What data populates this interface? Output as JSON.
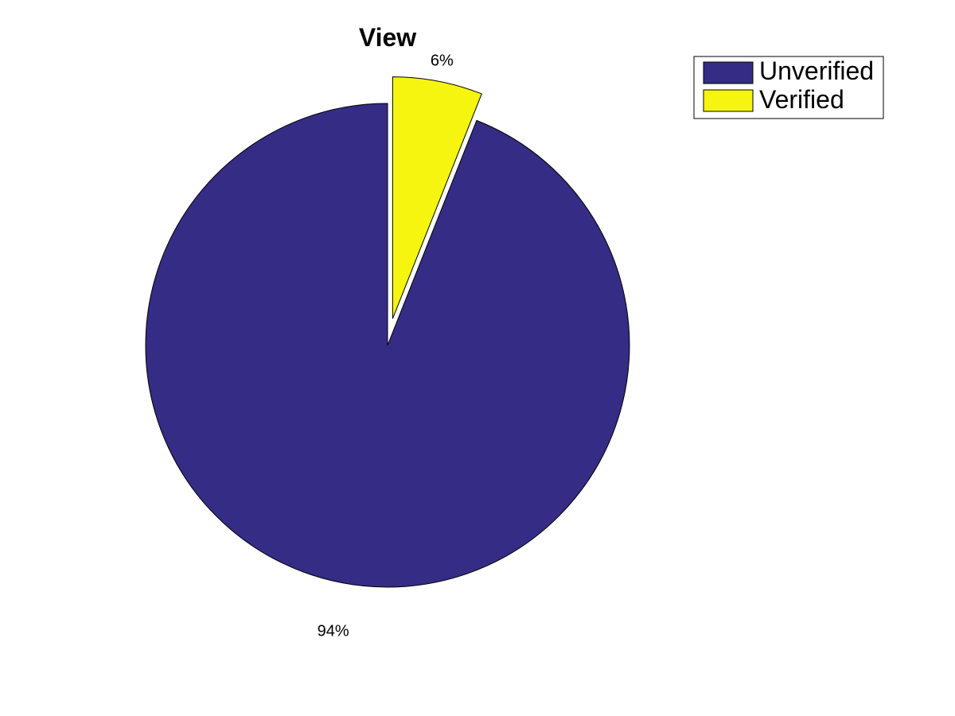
{
  "chart_data": {
    "type": "pie",
    "title": "View",
    "slices": [
      {
        "name": "Unverified",
        "value": 94,
        "label": "94%",
        "color": "#352c85",
        "exploded": false
      },
      {
        "name": "Verified",
        "value": 6,
        "label": "6%",
        "color": "#f5f50f",
        "exploded": true
      }
    ],
    "legend": {
      "placement": "top-right",
      "entries": [
        "Unverified",
        "Verified"
      ]
    }
  }
}
